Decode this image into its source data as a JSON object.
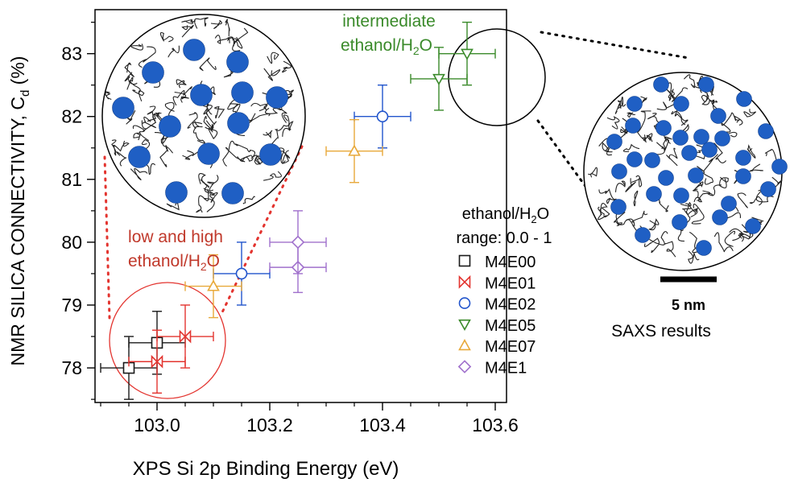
{
  "chart_data": {
    "type": "scatter",
    "xlabel": "XPS  Si 2p Binding Energy (eV)",
    "ylabel": "NMR SILICA CONNECTIVITY, C",
    "ylabel_sub": "d",
    "ylabel_unit": " (%)",
    "xlim": [
      102.89,
      103.62
    ],
    "ylim": [
      77.45,
      83.7
    ],
    "x_ticks": [
      103.0,
      103.2,
      103.4,
      103.6
    ],
    "x_tick_labels": [
      "103.0",
      "103.2",
      "103.4",
      "103.6"
    ],
    "y_ticks": [
      78,
      79,
      80,
      81,
      82,
      83
    ],
    "y_tick_labels": [
      "78",
      "79",
      "80",
      "81",
      "82",
      "83"
    ],
    "grid": false,
    "legend_position": "bottom-right",
    "legend_title_line1_pre": "ethanol/H",
    "legend_title_line1_sub": "2",
    "legend_title_line1_post": "O",
    "legend_title_line2": "range: 0.0 - 1",
    "series": [
      {
        "name": "M4E00",
        "marker": "square",
        "color": "#1a1a1a",
        "points": [
          {
            "x": 102.95,
            "y": 78.0,
            "xerr": 0.05,
            "yerr": 0.5
          },
          {
            "x": 103.0,
            "y": 78.4,
            "xerr": 0.05,
            "yerr": 0.5
          }
        ]
      },
      {
        "name": "M4E01",
        "marker": "bowtie",
        "color": "#e3342f",
        "points": [
          {
            "x": 103.0,
            "y": 78.1,
            "xerr": 0.05,
            "yerr": 0.5
          },
          {
            "x": 103.05,
            "y": 78.5,
            "xerr": 0.05,
            "yerr": 0.5
          }
        ]
      },
      {
        "name": "M4E02",
        "marker": "circle",
        "color": "#2255cc",
        "points": [
          {
            "x": 103.15,
            "y": 79.5,
            "xerr": 0.05,
            "yerr": 0.5
          },
          {
            "x": 103.4,
            "y": 82.0,
            "xerr": 0.05,
            "yerr": 0.5
          }
        ]
      },
      {
        "name": "M4E05",
        "marker": "triangle-down",
        "color": "#3a8a2a",
        "points": [
          {
            "x": 103.5,
            "y": 82.6,
            "xerr": 0.05,
            "yerr": 0.5
          },
          {
            "x": 103.55,
            "y": 83.0,
            "xerr": 0.05,
            "yerr": 0.5
          }
        ]
      },
      {
        "name": "M4E07",
        "marker": "triangle-up",
        "color": "#e8a93a",
        "points": [
          {
            "x": 103.1,
            "y": 79.3,
            "xerr": 0.05,
            "yerr": 0.5
          },
          {
            "x": 103.35,
            "y": 81.45,
            "xerr": 0.05,
            "yerr": 0.5
          }
        ]
      },
      {
        "name": "M4E1",
        "marker": "diamond",
        "color": "#a070cc",
        "points": [
          {
            "x": 103.25,
            "y": 79.6,
            "xerr": 0.05,
            "yerr": 0.4
          },
          {
            "x": 103.25,
            "y": 80.0,
            "xerr": 0.05,
            "yerr": 0.5
          }
        ]
      }
    ],
    "annotations": {
      "intermediate_line1": "intermediate",
      "intermediate_line2_pre": "ethanol/H",
      "intermediate_line2_sub": "2",
      "intermediate_line2_post": "O",
      "intermediate_color": "#3a8a2a",
      "lowhigh_line1": "low and high",
      "lowhigh_line2_pre": "ethanol/H",
      "lowhigh_line2_sub": "2",
      "lowhigh_line2_post": "O",
      "lowhigh_color": "#c0392b",
      "scale_bar_label": "5 nm",
      "saxs_label": "SAXS results",
      "micelle_color": "#1f5fc4"
    }
  }
}
